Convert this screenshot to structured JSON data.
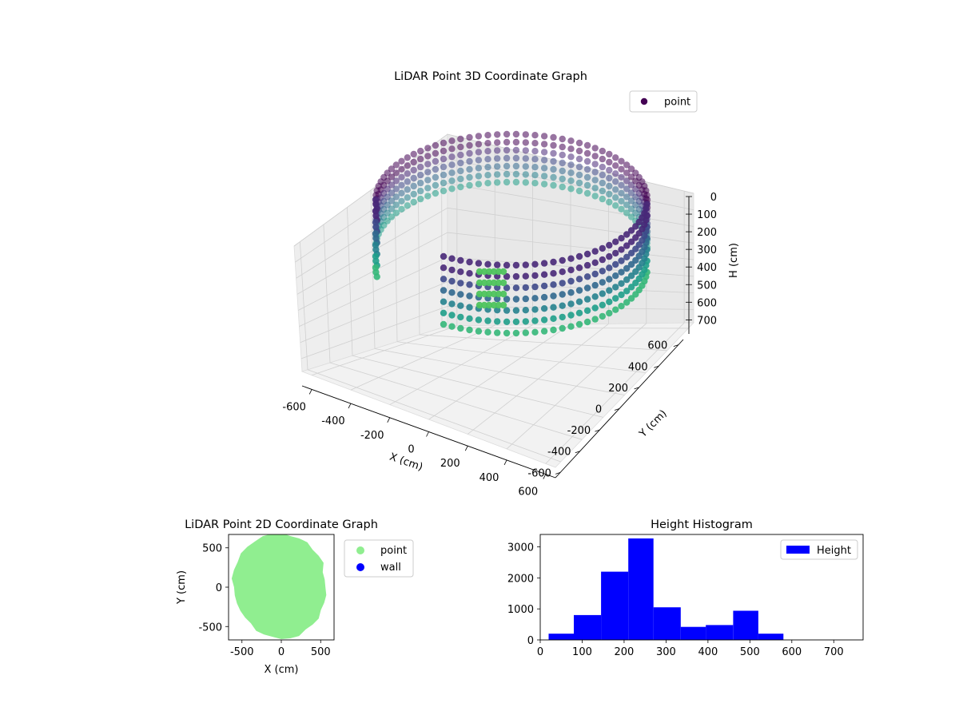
{
  "chart_data": [
    {
      "type": "scatter",
      "projection": "3d",
      "title": "LiDAR Point 3D Coordinate Graph",
      "xlabel": "X (cm)",
      "ylabel": "Y (cm)",
      "zlabel": "H (cm)",
      "xlim": [
        -650,
        650
      ],
      "ylim": [
        -650,
        650
      ],
      "zlim": [
        780,
        0
      ],
      "z_inverted": true,
      "xticks": [
        -600,
        -400,
        -200,
        0,
        200,
        400,
        600
      ],
      "yticks": [
        -600,
        -400,
        -200,
        0,
        200,
        400,
        600
      ],
      "zticks": [
        0,
        100,
        200,
        300,
        400,
        500,
        600,
        700
      ],
      "legend": [
        "point"
      ],
      "legend_position": "top-right",
      "colormap": "viridis",
      "grid": true,
      "series": [
        {
          "name": "point",
          "color": "#440154",
          "note_shape": "roughly circular wall of points, radius about 600, heights 0-780; colour by height",
          "ring": {
            "radius": 600,
            "z_min": 0,
            "z_max": 780
          }
        }
      ]
    },
    {
      "type": "scatter",
      "title": "LiDAR Point 2D Coordinate Graph",
      "xlabel": "X (cm)",
      "ylabel": "Y (cm)",
      "xlim": [
        -670,
        670
      ],
      "ylim": [
        -670,
        670
      ],
      "xticks": [
        -500,
        0,
        500
      ],
      "yticks": [
        -500,
        0,
        500
      ],
      "legend": [
        "point",
        "wall"
      ],
      "legend_position": "outside-right",
      "grid": false,
      "series": [
        {
          "name": "point",
          "color": "#90ee90"
        },
        {
          "name": "wall",
          "color": "#0000ff"
        }
      ]
    },
    {
      "type": "bar",
      "title": "Height Histogram",
      "xlim": [
        0,
        770
      ],
      "ylim": [
        0,
        3400
      ],
      "xticks": [
        0,
        100,
        200,
        300,
        400,
        500,
        600,
        700
      ],
      "yticks": [
        0,
        1000,
        2000,
        3000
      ],
      "legend": [
        "Height"
      ],
      "legend_position": "top-right",
      "grid": false,
      "series": [
        {
          "name": "Height",
          "color": "#0000ff",
          "bin_edges": [
            20,
            80,
            145,
            210,
            270,
            335,
            395,
            460,
            520,
            580,
            645,
            705
          ],
          "values": [
            200,
            800,
            2200,
            3270,
            1050,
            420,
            480,
            940,
            200,
            0,
            0
          ]
        }
      ]
    }
  ]
}
